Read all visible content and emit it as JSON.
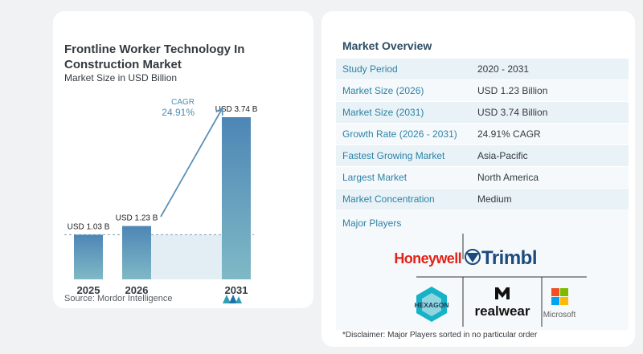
{
  "chart_data": {
    "type": "bar",
    "title": "Frontline Worker Technology In Construction Market",
    "subtitle": "Market Size in USD Billion",
    "categories": [
      "2025",
      "2026",
      "2031"
    ],
    "values": [
      1.03,
      1.23,
      3.74
    ],
    "data_labels": [
      "USD 1.03 B",
      "USD 1.23 B",
      "USD 3.74 B"
    ],
    "cagr_label": "CAGR",
    "cagr_value": "24.91%",
    "ylim": [
      0,
      3.74
    ],
    "colors": {
      "bar_top": "#4d86b5",
      "bar_bottom": "#7fb9c6",
      "shade": "#e3edf4"
    },
    "source": "Source:  Mordor Intelligence"
  },
  "overview": {
    "title": "Market Overview",
    "rows": [
      {
        "label": "Study Period",
        "value": "2020 - 2031"
      },
      {
        "label": "Market Size (2026)",
        "value": "USD 1.23 Billion"
      },
      {
        "label": "Market Size (2031)",
        "value": "USD 3.74 Billion"
      },
      {
        "label": "Growth Rate (2026 - 2031)",
        "value": "24.91% CAGR"
      },
      {
        "label": "Fastest Growing Market",
        "value": "Asia-Pacific"
      },
      {
        "label": "Largest Market",
        "value": "North America"
      },
      {
        "label": "Market Concentration",
        "value": "Medium"
      }
    ],
    "players_title": "Major Players",
    "players": [
      "Honeywell",
      "Trimbl",
      "HEXAGON",
      "realwear",
      "Microsoft"
    ],
    "disclaimer": "*Disclaimer: Major Players sorted in no particular order"
  }
}
